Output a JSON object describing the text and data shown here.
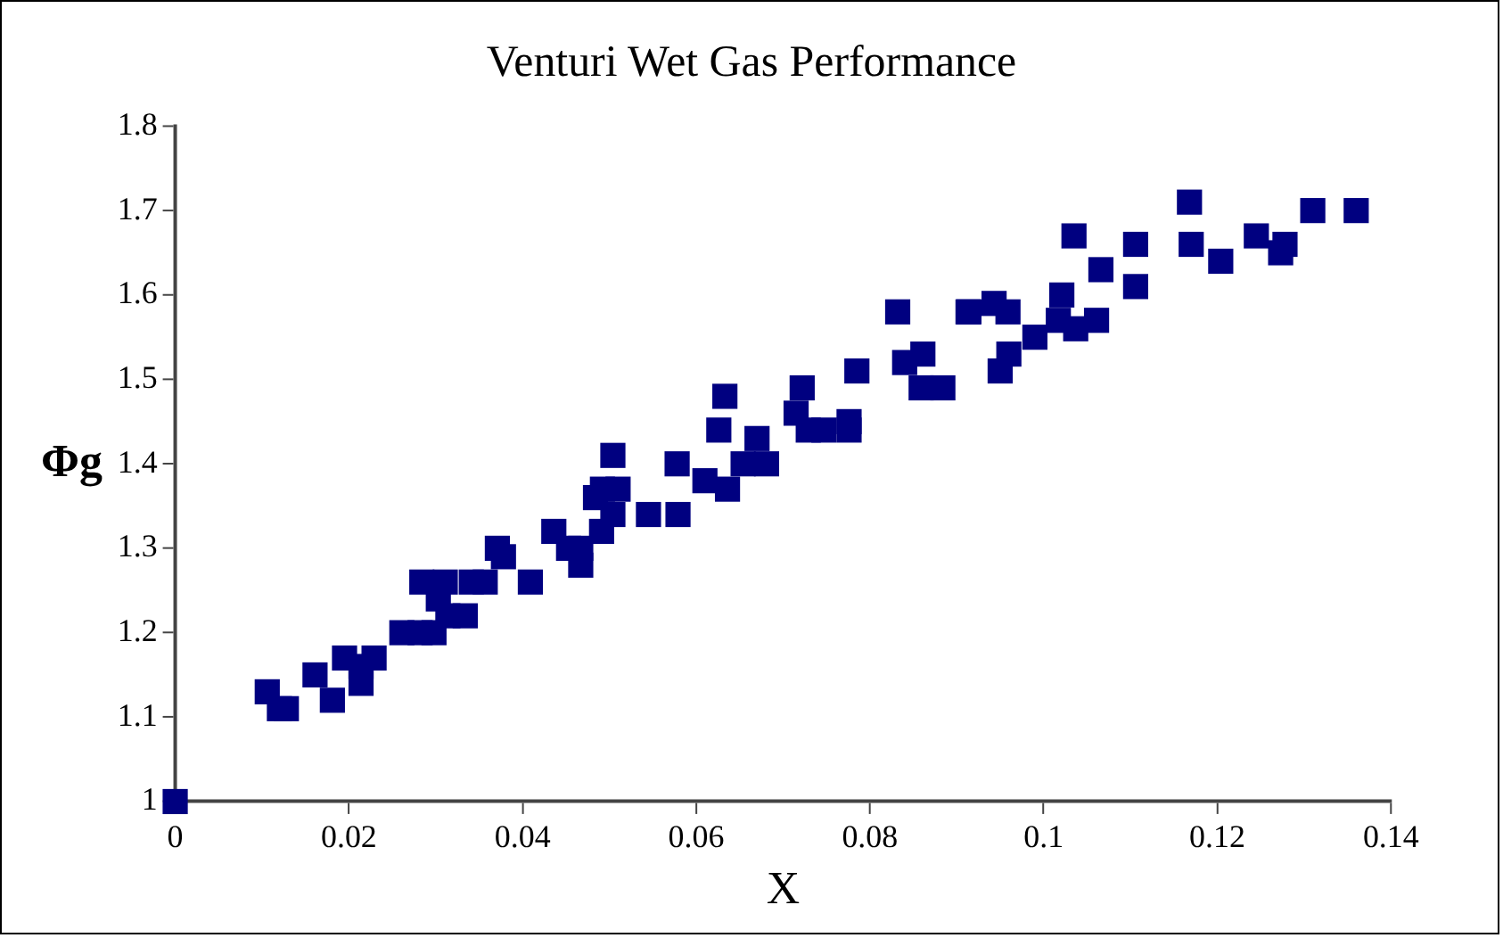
{
  "chart_data": {
    "type": "scatter",
    "title": "Venturi Wet Gas Performance",
    "xlabel": "X",
    "ylabel": "Φg",
    "xlim": [
      0,
      0.14
    ],
    "xticks": [
      0,
      0.02,
      0.04,
      0.06,
      0.08,
      0.1,
      0.12,
      0.14
    ],
    "ylim": [
      1,
      1.8
    ],
    "yticks": [
      1,
      1.1,
      1.2,
      1.3,
      1.4,
      1.5,
      1.6,
      1.7,
      1.8
    ],
    "grid": false,
    "legend": false,
    "marker": "square",
    "series": [
      {
        "color": "#000080",
        "x": [
          0,
          0.0106,
          0.012,
          0.0128,
          0.0161,
          0.0181,
          0.0195,
          0.0214,
          0.0214,
          0.0229,
          0.0261,
          0.0282,
          0.0284,
          0.0298,
          0.0303,
          0.0311,
          0.0314,
          0.0334,
          0.0341,
          0.0357,
          0.0371,
          0.0378,
          0.0409,
          0.0436,
          0.0453,
          0.0467,
          0.0467,
          0.0484,
          0.0491,
          0.0492,
          0.0504,
          0.0504,
          0.051,
          0.0545,
          0.0578,
          0.0579,
          0.061,
          0.0626,
          0.0633,
          0.0636,
          0.0654,
          0.067,
          0.0681,
          0.0715,
          0.0722,
          0.0729,
          0.0747,
          0.0776,
          0.0776,
          0.0785,
          0.0832,
          0.084,
          0.0859,
          0.0861,
          0.0884,
          0.0913,
          0.0914,
          0.0943,
          0.095,
          0.0959,
          0.096,
          0.099,
          0.1017,
          0.1021,
          0.1035,
          0.1037,
          0.1061,
          0.1066,
          0.1106,
          0.1106,
          0.1168,
          0.117,
          0.1204,
          0.1245,
          0.1273,
          0.1278,
          0.131,
          0.136
        ],
        "values": [
          1.0,
          1.13,
          1.11,
          1.11,
          1.15,
          1.12,
          1.17,
          1.14,
          1.16,
          1.17,
          1.2,
          1.2,
          1.26,
          1.2,
          1.24,
          1.26,
          1.22,
          1.22,
          1.26,
          1.26,
          1.3,
          1.29,
          1.26,
          1.32,
          1.3,
          1.3,
          1.28,
          1.36,
          1.32,
          1.37,
          1.41,
          1.34,
          1.37,
          1.34,
          1.4,
          1.34,
          1.38,
          1.44,
          1.48,
          1.37,
          1.4,
          1.43,
          1.4,
          1.46,
          1.49,
          1.44,
          1.44,
          1.45,
          1.44,
          1.51,
          1.58,
          1.52,
          1.49,
          1.53,
          1.49,
          1.58,
          1.58,
          1.59,
          1.51,
          1.58,
          1.53,
          1.55,
          1.57,
          1.6,
          1.67,
          1.56,
          1.57,
          1.63,
          1.66,
          1.61,
          1.71,
          1.66,
          1.64,
          1.67,
          1.65,
          1.66,
          1.7,
          1.7
        ]
      }
    ]
  }
}
